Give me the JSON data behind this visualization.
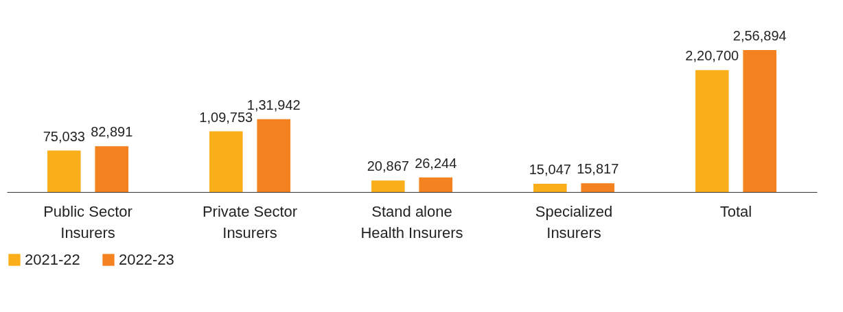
{
  "chart_data": {
    "type": "bar",
    "categories": [
      "Public Sector\nInsurers",
      "Private Sector\nInsurers",
      "Stand alone\nHealth Insurers",
      "Specialized\nInsurers",
      "Total"
    ],
    "series": [
      {
        "name": "2021-22",
        "color": "#f9ae1a",
        "values": [
          75033,
          109753,
          20867,
          15047,
          220700
        ],
        "value_labels": [
          "75,033",
          "1,09,753",
          "20,867",
          "15,047",
          "2,20,700"
        ]
      },
      {
        "name": "2022-23",
        "color": "#f58220",
        "values": [
          82891,
          131942,
          26244,
          15817,
          256894
        ],
        "value_labels": [
          "82,891",
          "1,31,942",
          "26,244",
          "15,817",
          "2,56,894"
        ]
      }
    ],
    "grid": false,
    "legend": "bottom"
  }
}
